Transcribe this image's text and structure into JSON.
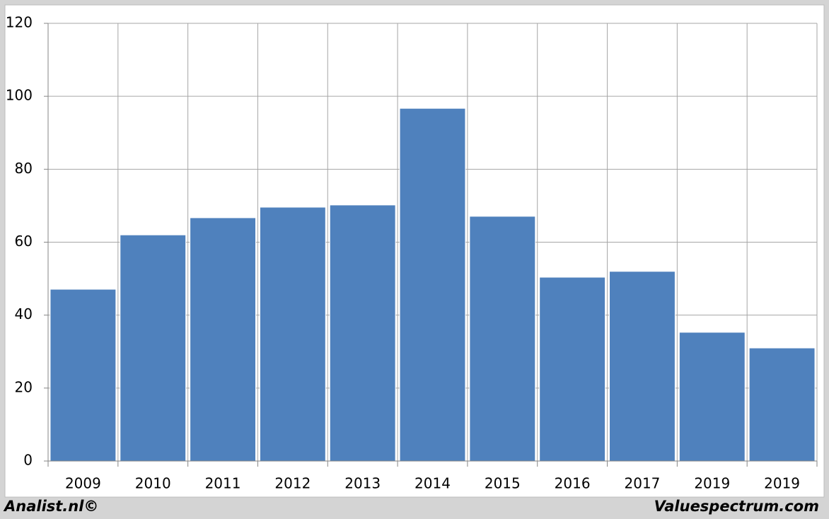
{
  "chart_data": {
    "type": "bar",
    "categories": [
      "2009",
      "2010",
      "2011",
      "2012",
      "2013",
      "2014",
      "2015",
      "2016",
      "2017",
      "2019",
      "2019"
    ],
    "values": [
      47.1,
      62.0,
      66.7,
      69.6,
      70.2,
      96.7,
      67.1,
      50.4,
      52.0,
      35.3,
      31.0
    ],
    "color": "#4f81bd",
    "ylim": [
      0,
      120
    ],
    "yticks": [
      0,
      20,
      40,
      60,
      80,
      100,
      120
    ],
    "grid": true
  },
  "footer": {
    "left": "Analist.nl©",
    "right": "Valuespectrum.com"
  }
}
